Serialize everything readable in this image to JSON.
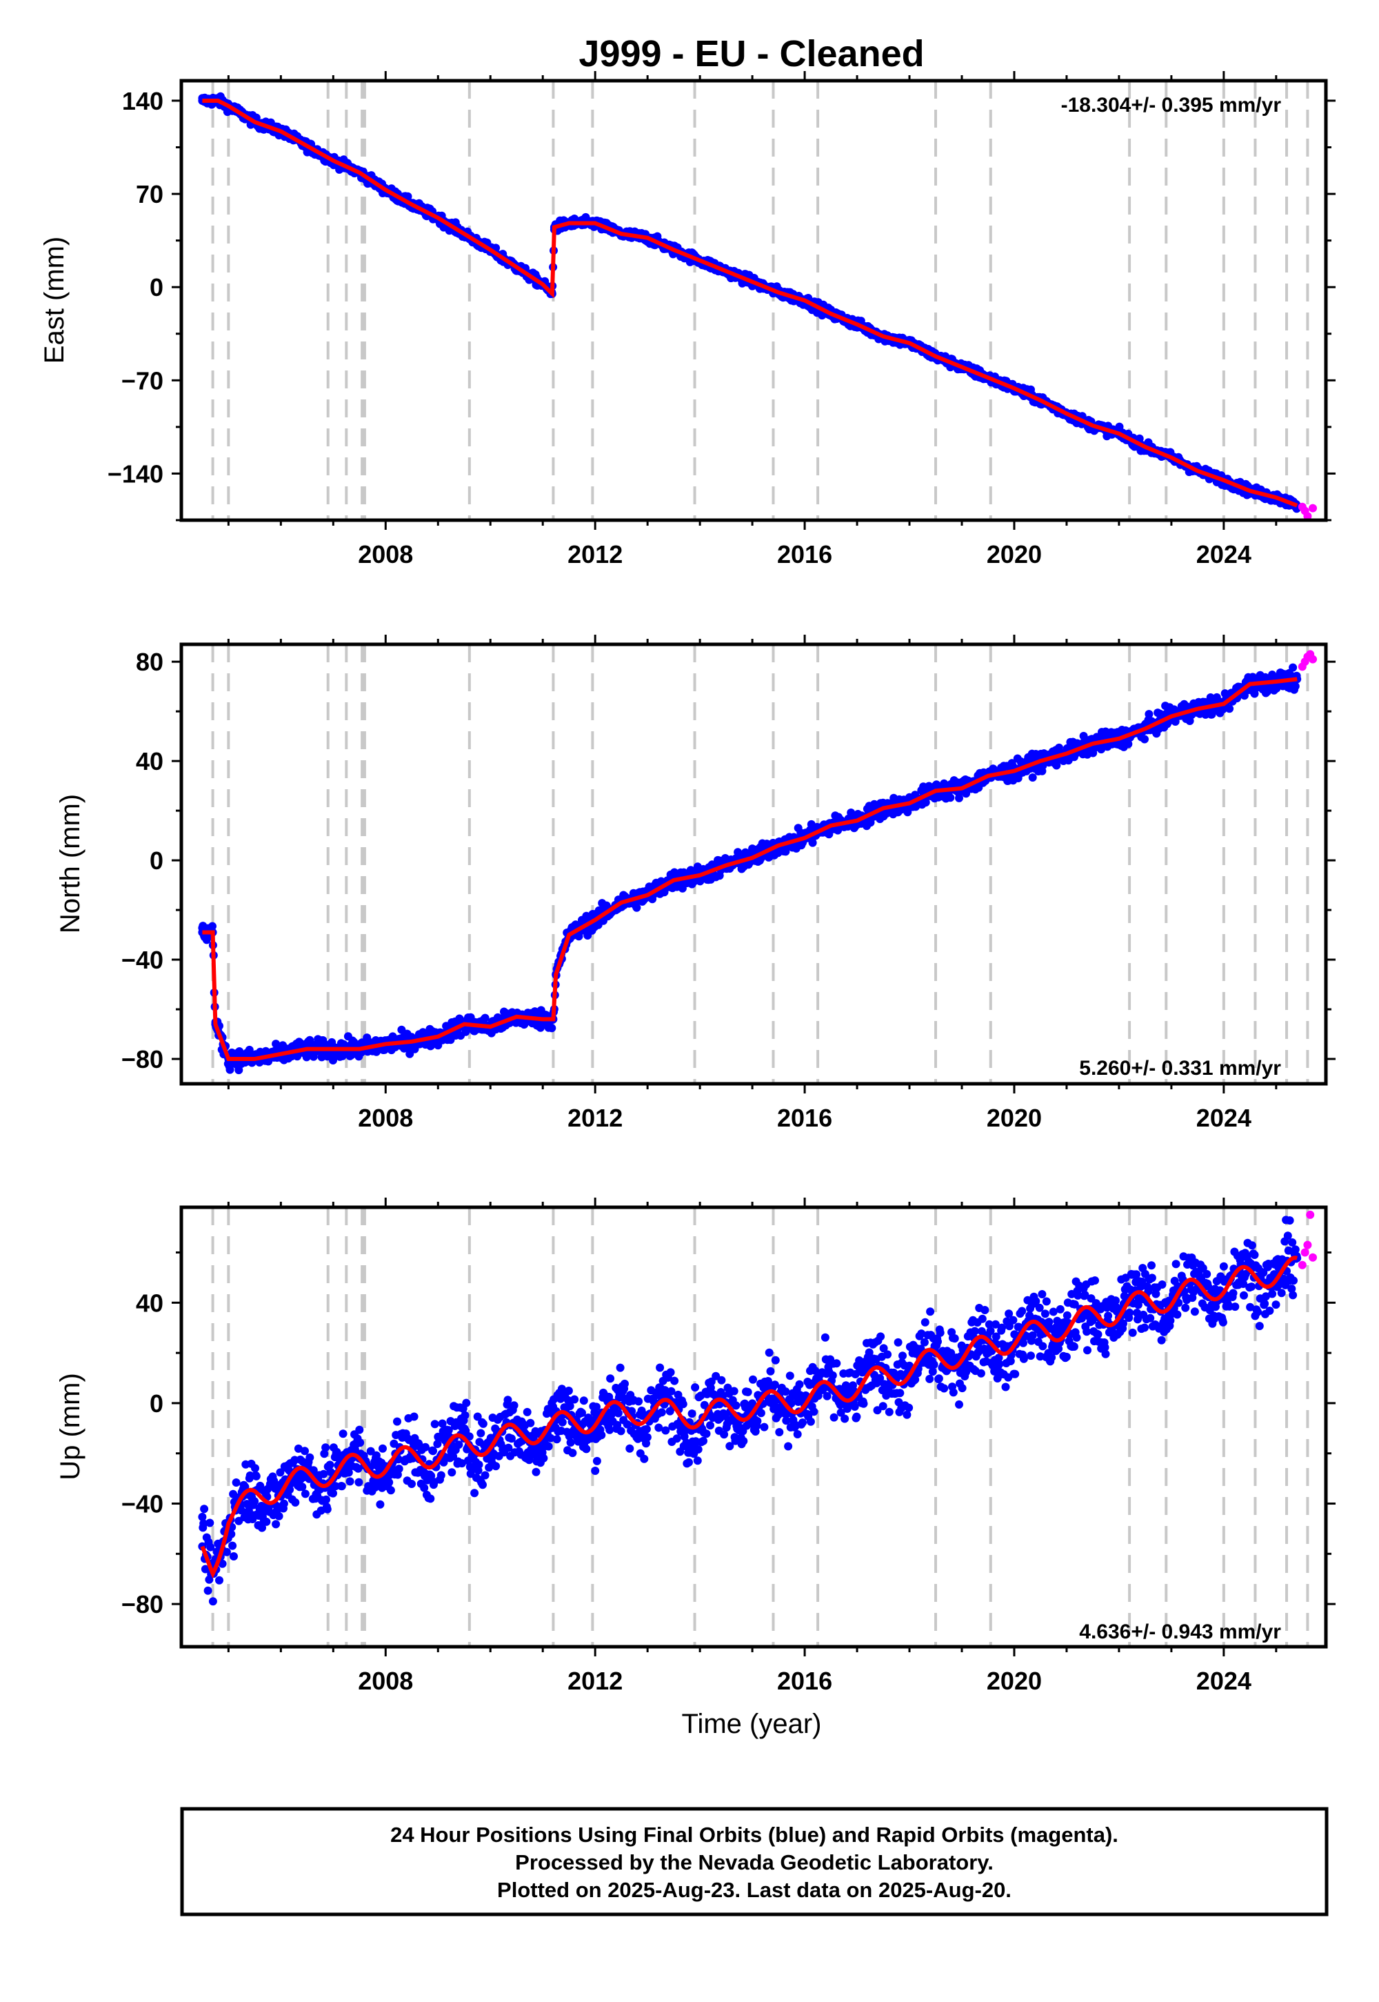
{
  "figure": {
    "title": "J999  - EU - Cleaned",
    "xlabel": "Time (year)",
    "footer": [
      "24 Hour Positions Using Final Orbits (blue) and Rapid Orbits (magenta).",
      "Processed by the Nevada Geodetic Laboratory.",
      "Plotted on 2025-Aug-23. Last data on 2025-Aug-20."
    ]
  },
  "colors": {
    "final_orbits": "#0000ff",
    "rapid_orbits": "#ff00ff",
    "model": "#ff0000",
    "event_lines": "#c8c8c8"
  },
  "chart_data": [
    {
      "type": "scatter",
      "component": "east",
      "ylabel": "East (mm)",
      "rate_label": "-18.304+/- 0.395 mm/yr",
      "xlim": [
        2004.1,
        2025.95
      ],
      "ylim": [
        -175,
        155
      ],
      "xticks": [
        2008,
        2012,
        2016,
        2020,
        2024
      ],
      "yticks": [
        -140,
        -70,
        0,
        70,
        140
      ],
      "grid": false,
      "event_lines": [
        2004.7,
        2005.0,
        2006.9,
        2007.25,
        2007.55,
        2007.6,
        2009.6,
        2011.2,
        2011.95,
        2013.9,
        2015.4,
        2016.25,
        2018.5,
        2019.55,
        2022.2,
        2022.9,
        2024.0,
        2024.6,
        2025.2,
        2025.6
      ],
      "series": [
        {
          "name": "Final Orbits (blue)",
          "points": [
            [
              2004.5,
              140
            ],
            [
              2004.8,
              140
            ],
            [
              2005.0,
              136
            ],
            [
              2005.5,
              124
            ],
            [
              2006.0,
              117
            ],
            [
              2006.5,
              106
            ],
            [
              2007.0,
              95
            ],
            [
              2007.5,
              86
            ],
            [
              2008.0,
              73
            ],
            [
              2008.5,
              62
            ],
            [
              2009.0,
              52
            ],
            [
              2009.5,
              40
            ],
            [
              2010.0,
              28
            ],
            [
              2010.5,
              15
            ],
            [
              2011.0,
              2
            ],
            [
              2011.18,
              -5
            ],
            [
              2011.22,
              45
            ],
            [
              2011.5,
              48
            ],
            [
              2012.0,
              48
            ],
            [
              2012.5,
              40
            ],
            [
              2013.0,
              37
            ],
            [
              2013.5,
              28
            ],
            [
              2014.0,
              20
            ],
            [
              2014.5,
              12
            ],
            [
              2015.0,
              4
            ],
            [
              2015.5,
              -4
            ],
            [
              2016.0,
              -10
            ],
            [
              2016.5,
              -20
            ],
            [
              2017.0,
              -28
            ],
            [
              2017.5,
              -37
            ],
            [
              2018.0,
              -42
            ],
            [
              2018.5,
              -52
            ],
            [
              2019.0,
              -60
            ],
            [
              2019.5,
              -68
            ],
            [
              2020.0,
              -76
            ],
            [
              2020.5,
              -85
            ],
            [
              2021.0,
              -95
            ],
            [
              2021.5,
              -104
            ],
            [
              2022.0,
              -110
            ],
            [
              2022.5,
              -120
            ],
            [
              2023.0,
              -128
            ],
            [
              2023.5,
              -138
            ],
            [
              2024.0,
              -145
            ],
            [
              2024.5,
              -153
            ],
            [
              2025.0,
              -158
            ],
            [
              2025.4,
              -164
            ]
          ]
        },
        {
          "name": "Rapid Orbits (magenta)",
          "points": [
            [
              2025.5,
              -165
            ],
            [
              2025.55,
              -168
            ],
            [
              2025.6,
              -172
            ],
            [
              2025.65,
              -178
            ],
            [
              2025.7,
              -166
            ]
          ]
        }
      ]
    },
    {
      "type": "scatter",
      "component": "north",
      "ylabel": "North (mm)",
      "rate_label": "5.260+/- 0.331 mm/yr",
      "xlim": [
        2004.1,
        2025.95
      ],
      "ylim": [
        -90,
        87
      ],
      "xticks": [
        2008,
        2012,
        2016,
        2020,
        2024
      ],
      "yticks": [
        -80,
        -40,
        0,
        40,
        80
      ],
      "grid": false,
      "event_lines": [
        2004.7,
        2005.0,
        2006.9,
        2007.25,
        2007.55,
        2007.6,
        2009.6,
        2011.2,
        2011.95,
        2013.9,
        2015.4,
        2016.25,
        2018.5,
        2019.55,
        2022.2,
        2022.9,
        2024.0,
        2024.6,
        2025.2,
        2025.6
      ],
      "series": [
        {
          "name": "Final Orbits (blue)",
          "points": [
            [
              2004.5,
              -29
            ],
            [
              2004.7,
              -29
            ],
            [
              2004.75,
              -66
            ],
            [
              2005.0,
              -80
            ],
            [
              2005.5,
              -80
            ],
            [
              2006.0,
              -78
            ],
            [
              2006.5,
              -76
            ],
            [
              2007.0,
              -76
            ],
            [
              2007.5,
              -76
            ],
            [
              2008.0,
              -74
            ],
            [
              2008.5,
              -73
            ],
            [
              2009.0,
              -71
            ],
            [
              2009.5,
              -66
            ],
            [
              2010.0,
              -67
            ],
            [
              2010.5,
              -63
            ],
            [
              2011.0,
              -64
            ],
            [
              2011.2,
              -64
            ],
            [
              2011.25,
              -46
            ],
            [
              2011.5,
              -30
            ],
            [
              2012.0,
              -24
            ],
            [
              2012.5,
              -17
            ],
            [
              2013.0,
              -14
            ],
            [
              2013.5,
              -8
            ],
            [
              2014.0,
              -6
            ],
            [
              2014.5,
              -2
            ],
            [
              2015.0,
              1
            ],
            [
              2015.5,
              6
            ],
            [
              2016.0,
              9
            ],
            [
              2016.5,
              14
            ],
            [
              2017.0,
              16
            ],
            [
              2017.5,
              21
            ],
            [
              2018.0,
              23
            ],
            [
              2018.5,
              28
            ],
            [
              2019.0,
              29
            ],
            [
              2019.5,
              34
            ],
            [
              2020.0,
              36
            ],
            [
              2020.5,
              40
            ],
            [
              2021.0,
              43
            ],
            [
              2021.5,
              47
            ],
            [
              2022.0,
              49
            ],
            [
              2022.5,
              53
            ],
            [
              2023.0,
              58
            ],
            [
              2023.5,
              61
            ],
            [
              2024.0,
              63
            ],
            [
              2024.5,
              71
            ],
            [
              2025.0,
              72
            ],
            [
              2025.4,
              73
            ]
          ]
        },
        {
          "name": "Rapid Orbits (magenta)",
          "points": [
            [
              2025.5,
              78
            ],
            [
              2025.55,
              80
            ],
            [
              2025.6,
              82
            ],
            [
              2025.65,
              83
            ],
            [
              2025.7,
              81
            ]
          ]
        }
      ]
    },
    {
      "type": "scatter",
      "component": "up",
      "ylabel": "Up (mm)",
      "rate_label": "4.636+/- 0.943 mm/yr",
      "xlim": [
        2004.1,
        2025.95
      ],
      "ylim": [
        -97,
        78
      ],
      "xticks": [
        2008,
        2012,
        2016,
        2020,
        2024
      ],
      "yticks": [
        -80,
        -40,
        0,
        40
      ],
      "grid": false,
      "event_lines": [
        2004.7,
        2005.0,
        2006.9,
        2007.25,
        2007.55,
        2007.6,
        2009.6,
        2011.2,
        2011.95,
        2013.9,
        2015.4,
        2016.25,
        2018.5,
        2019.55,
        2022.2,
        2022.9,
        2024.0,
        2024.6,
        2025.2,
        2025.6
      ],
      "series": [
        {
          "name": "Final Orbits (blue)",
          "points": [
            [
              2004.5,
              -60
            ],
            [
              2004.7,
              -65
            ],
            [
              2005.0,
              -45
            ],
            [
              2005.5,
              -38
            ],
            [
              2006.0,
              -33
            ],
            [
              2006.5,
              -30
            ],
            [
              2007.0,
              -27
            ],
            [
              2007.5,
              -25
            ],
            [
              2008.0,
              -24
            ],
            [
              2008.5,
              -22
            ],
            [
              2009.0,
              -20
            ],
            [
              2009.5,
              -17
            ],
            [
              2010.0,
              -15
            ],
            [
              2010.5,
              -13
            ],
            [
              2011.0,
              -10
            ],
            [
              2011.5,
              -8
            ],
            [
              2012.0,
              -6
            ],
            [
              2012.5,
              -4
            ],
            [
              2013.0,
              -3
            ],
            [
              2013.5,
              -4
            ],
            [
              2014.0,
              -5
            ],
            [
              2014.5,
              -3
            ],
            [
              2015.0,
              -1
            ],
            [
              2015.5,
              0
            ],
            [
              2016.0,
              2
            ],
            [
              2016.5,
              4
            ],
            [
              2017.0,
              7
            ],
            [
              2017.5,
              10
            ],
            [
              2018.0,
              14
            ],
            [
              2018.5,
              17
            ],
            [
              2019.0,
              20
            ],
            [
              2019.5,
              22
            ],
            [
              2020.0,
              26
            ],
            [
              2020.5,
              28
            ],
            [
              2021.0,
              31
            ],
            [
              2021.5,
              34
            ],
            [
              2022.0,
              37
            ],
            [
              2022.5,
              40
            ],
            [
              2023.0,
              42
            ],
            [
              2023.5,
              45
            ],
            [
              2024.0,
              47
            ],
            [
              2024.5,
              50
            ],
            [
              2025.0,
              52
            ],
            [
              2025.4,
              53
            ]
          ]
        },
        {
          "name": "Rapid Orbits (magenta)",
          "points": [
            [
              2025.5,
              55
            ],
            [
              2025.55,
              60
            ],
            [
              2025.6,
              63
            ],
            [
              2025.65,
              75
            ],
            [
              2025.7,
              58
            ]
          ]
        }
      ]
    }
  ]
}
